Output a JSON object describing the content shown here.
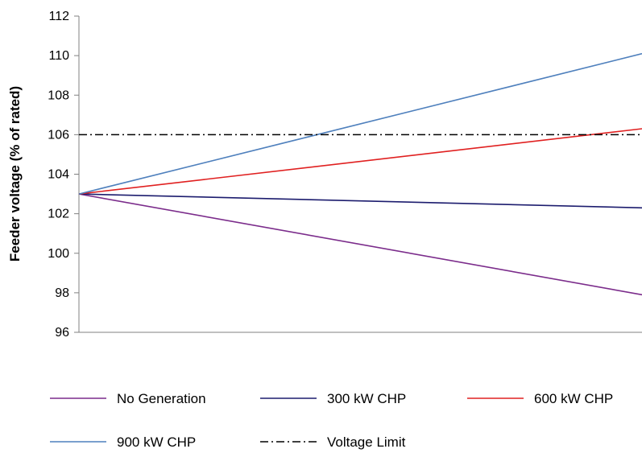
{
  "chart_data": {
    "type": "line",
    "title": "",
    "xlabel": "",
    "ylabel": "Feeder voltage (% of rated)",
    "ylim": [
      96,
      112
    ],
    "yticks": [
      96,
      98,
      100,
      102,
      104,
      106,
      108,
      110,
      112
    ],
    "x": [
      0,
      1
    ],
    "grid": false,
    "legend_position": "bottom",
    "series": [
      {
        "name": "No Generation",
        "values": [
          103.0,
          97.9
        ],
        "color": "#7b2c8b",
        "style": "solid"
      },
      {
        "name": "300 kW CHP",
        "values": [
          103.0,
          102.3
        ],
        "color": "#1c1c6e",
        "style": "solid"
      },
      {
        "name": "600 kW CHP",
        "values": [
          103.0,
          106.3
        ],
        "color": "#e02020",
        "style": "solid"
      },
      {
        "name": "900 kW CHP",
        "values": [
          103.0,
          110.1
        ],
        "color": "#4f80bd",
        "style": "solid"
      },
      {
        "name": "Voltage Limit",
        "values": [
          106.0,
          106.0
        ],
        "color": "#000000",
        "style": "dashdot"
      }
    ]
  }
}
